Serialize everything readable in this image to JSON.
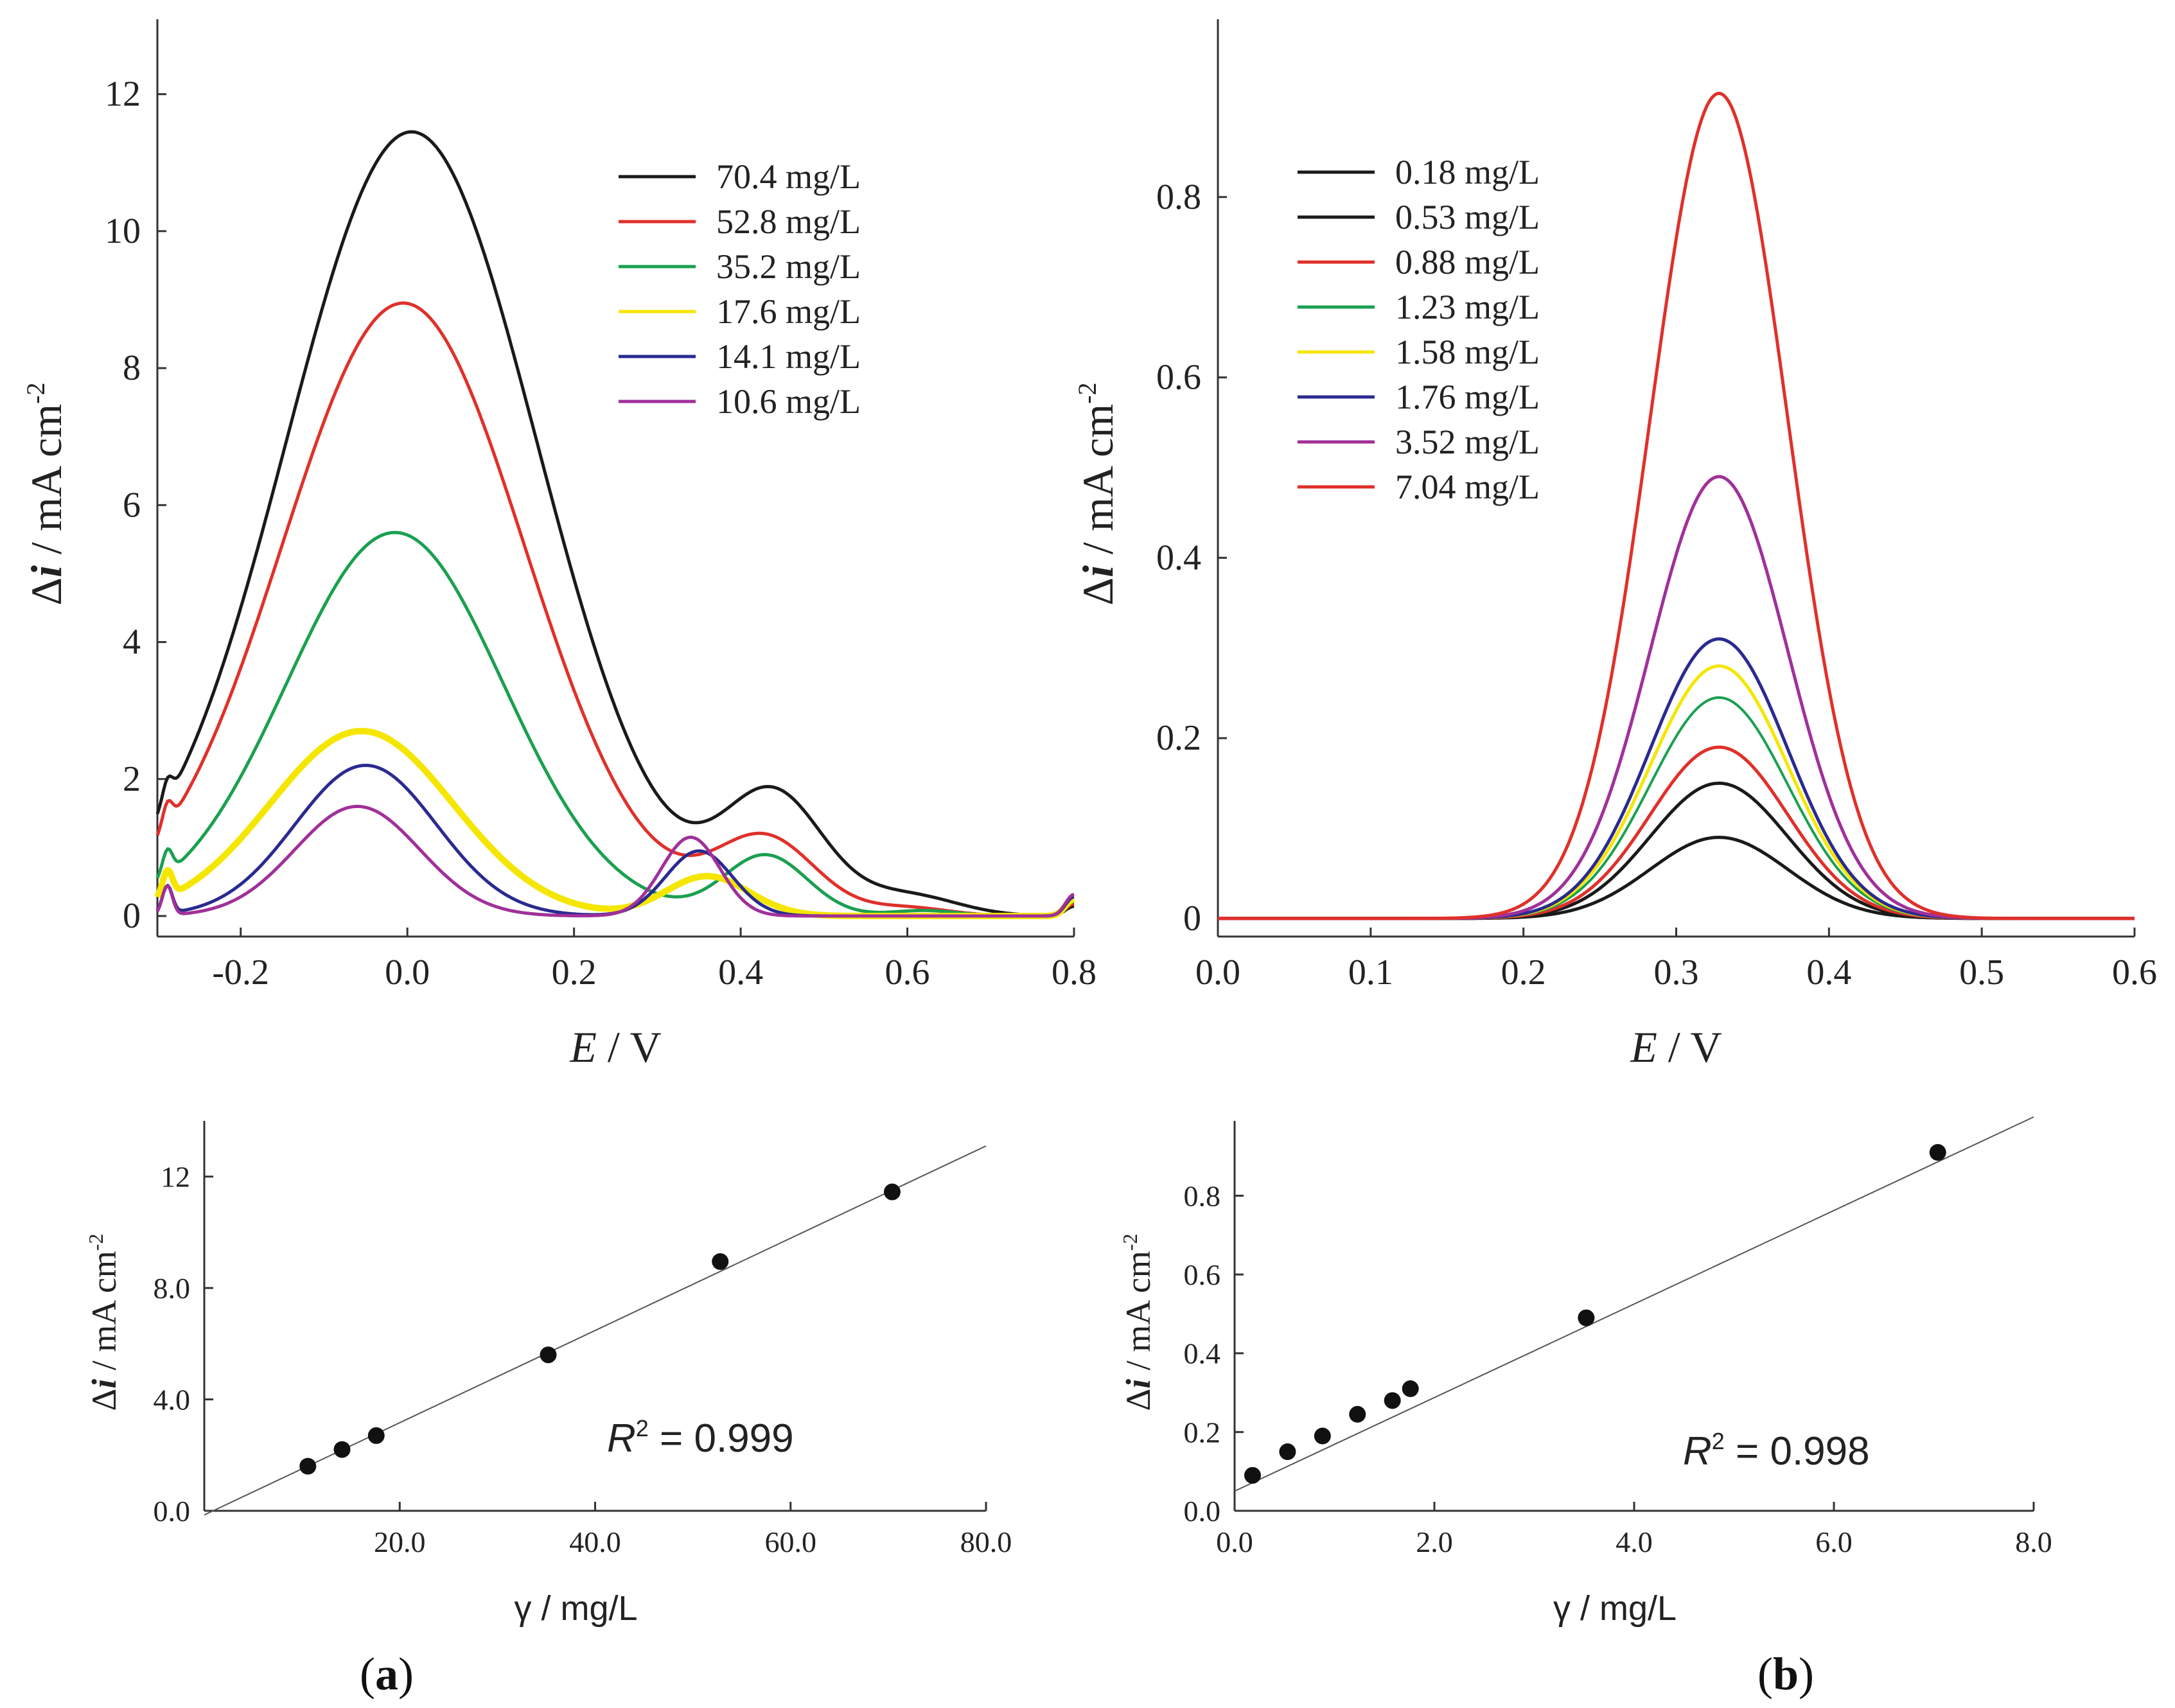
{
  "panel_labels": {
    "a": "a",
    "b": "b"
  },
  "chart_data": [
    {
      "id": "a_top",
      "type": "line",
      "title": "",
      "xlabel_italic": "E",
      "xlabel_rest": " / V",
      "ylabel_delta": "Δ",
      "ylabel_italic": "i",
      "ylabel_rest": " / mA cm",
      "ylabel_sup": "-2",
      "xlim": [
        -0.3,
        0.8
      ],
      "ylim": [
        -0.3,
        13
      ],
      "x_ticks": [
        -0.2,
        0.0,
        0.2,
        0.4,
        0.6,
        0.8
      ],
      "x_tick_labels": [
        "-0.2",
        "0.0",
        "0.2",
        "0.4",
        "0.6",
        "0.8"
      ],
      "y_ticks": [
        0,
        2,
        4,
        6,
        8,
        10,
        12
      ],
      "y_tick_labels": [
        "0",
        "2",
        "4",
        "6",
        "8",
        "10",
        "12"
      ],
      "legend_position": "top-right",
      "series": [
        {
          "name": "70.4 mg/L",
          "color": "#1a1a1a",
          "width": 5,
          "peaks": [
            [
              0.005,
              11.45,
              0.15
            ],
            [
              0.44,
              1.7,
              0.06
            ],
            [
              0.6,
              0.3,
              0.06
            ]
          ]
        },
        {
          "name": "52.8 mg/L",
          "color": "#e0302a",
          "width": 5,
          "peaks": [
            [
              -0.005,
              8.95,
              0.145
            ],
            [
              0.43,
              1.1,
              0.06
            ],
            [
              0.6,
              0.12,
              0.05
            ]
          ]
        },
        {
          "name": "35.2 mg/L",
          "color": "#1aa050",
          "width": 5,
          "peaks": [
            [
              -0.015,
              5.6,
              0.13
            ],
            [
              0.43,
              0.88,
              0.05
            ],
            [
              0.62,
              0.08,
              0.04
            ]
          ]
        },
        {
          "name": "17.6 mg/L",
          "color": "#f5e600",
          "width": 10,
          "peaks": [
            [
              -0.055,
              2.7,
              0.11
            ],
            [
              0.36,
              0.58,
              0.05
            ]
          ]
        },
        {
          "name": "14.1 mg/L",
          "color": "#2a2a90",
          "width": 5,
          "peaks": [
            [
              -0.05,
              2.2,
              0.085
            ],
            [
              0.35,
              0.95,
              0.04
            ]
          ]
        },
        {
          "name": "10.6 mg/L",
          "color": "#a0309a",
          "width": 5,
          "peaks": [
            [
              -0.06,
              1.6,
              0.075
            ],
            [
              0.34,
              1.15,
              0.035
            ]
          ]
        }
      ]
    },
    {
      "id": "b_top",
      "type": "line",
      "title": "",
      "xlabel_italic": "E",
      "xlabel_rest": " / V",
      "ylabel_delta": "Δ",
      "ylabel_italic": "i",
      "ylabel_rest": " / mA cm",
      "ylabel_sup": "-2",
      "xlim": [
        0.0,
        0.6
      ],
      "ylim": [
        -0.02,
        0.99
      ],
      "x_ticks": [
        0.0,
        0.1,
        0.2,
        0.3,
        0.4,
        0.5,
        0.6
      ],
      "x_tick_labels": [
        "0.0",
        "0.1",
        "0.2",
        "0.3",
        "0.4",
        "0.5",
        "0.6"
      ],
      "y_ticks": [
        0,
        0.2,
        0.4,
        0.6,
        0.8
      ],
      "y_tick_labels": [
        "0",
        "0.2",
        "0.4",
        "0.6",
        "0.8"
      ],
      "legend_position": "top-left",
      "series": [
        {
          "name": "0.18 mg/L",
          "color": "#1a1a1a",
          "width": 5,
          "peaks": [
            [
              0.328,
              0.09,
              0.045
            ]
          ]
        },
        {
          "name": "0.53 mg/L",
          "color": "#1a1a1a",
          "width": 5,
          "peaks": [
            [
              0.328,
              0.15,
              0.045
            ]
          ]
        },
        {
          "name": "0.88 mg/L",
          "color": "#e0302a",
          "width": 5,
          "peaks": [
            [
              0.328,
              0.19,
              0.045
            ]
          ]
        },
        {
          "name": "1.23 mg/L",
          "color": "#1aa050",
          "width": 4,
          "peaks": [
            [
              0.328,
              0.245,
              0.045
            ]
          ]
        },
        {
          "name": "1.58 mg/L",
          "color": "#f5e600",
          "width": 5,
          "peaks": [
            [
              0.328,
              0.28,
              0.045
            ]
          ]
        },
        {
          "name": "1.76 mg/L",
          "color": "#2a2a90",
          "width": 5,
          "peaks": [
            [
              0.328,
              0.31,
              0.045
            ]
          ]
        },
        {
          "name": "3.52 mg/L",
          "color": "#a0309a",
          "width": 5,
          "peaks": [
            [
              0.328,
              0.49,
              0.045
            ]
          ]
        },
        {
          "name": "7.04 mg/L",
          "color": "#e0302a",
          "width": 5,
          "peaks": [
            [
              0.328,
              0.915,
              0.045
            ]
          ]
        }
      ]
    },
    {
      "id": "a_bottom",
      "type": "scatter",
      "title": "",
      "xlabel": "γ / mg/L",
      "ylabel_delta": "Δ",
      "ylabel_italic": "i",
      "ylabel_rest": " / mA cm",
      "ylabel_sup": "-2",
      "xlim": [
        0,
        80
      ],
      "ylim": [
        0,
        14
      ],
      "x_ticks": [
        20,
        40,
        60,
        80
      ],
      "x_tick_labels": [
        "20.0",
        "40.0",
        "60.0",
        "80.0"
      ],
      "y_ticks": [
        0,
        4,
        8,
        12
      ],
      "y_tick_labels": [
        "0.0",
        "4.0",
        "8.0",
        "12"
      ],
      "r2_italic": "R",
      "r2_sup": "2",
      "r2_text": " = 0.999",
      "points": [
        [
          10.6,
          1.6
        ],
        [
          14.1,
          2.2
        ],
        [
          17.6,
          2.7
        ],
        [
          35.2,
          5.6
        ],
        [
          52.8,
          8.95
        ],
        [
          70.4,
          11.45
        ]
      ],
      "fit": {
        "x": [
          0,
          80
        ],
        "y": [
          -0.15,
          13.1
        ]
      }
    },
    {
      "id": "b_bottom",
      "type": "scatter",
      "title": "",
      "xlabel": "γ / mg/L",
      "ylabel_delta": "Δ",
      "ylabel_italic": "i",
      "ylabel_rest": " / mA cm",
      "ylabel_sup": "-2",
      "xlim": [
        0,
        8
      ],
      "ylim": [
        0,
        0.99
      ],
      "x_ticks": [
        0,
        2,
        4,
        6,
        8
      ],
      "x_tick_labels": [
        "0.0",
        "2.0",
        "4.0",
        "6.0",
        "8.0"
      ],
      "y_ticks": [
        0,
        0.2,
        0.4,
        0.6,
        0.8
      ],
      "y_tick_labels": [
        "0.0",
        "0.2",
        "0.4",
        "0.6",
        "0.8"
      ],
      "r2_italic": "R",
      "r2_sup": "2",
      "r2_text": " = 0.998",
      "points": [
        [
          0.18,
          0.09
        ],
        [
          0.53,
          0.15
        ],
        [
          0.88,
          0.19
        ],
        [
          1.23,
          0.245
        ],
        [
          1.58,
          0.28
        ],
        [
          1.76,
          0.31
        ],
        [
          3.52,
          0.49
        ],
        [
          7.04,
          0.91
        ]
      ],
      "fit": {
        "x": [
          0,
          8
        ],
        "y": [
          0.05,
          1.0
        ]
      }
    }
  ]
}
